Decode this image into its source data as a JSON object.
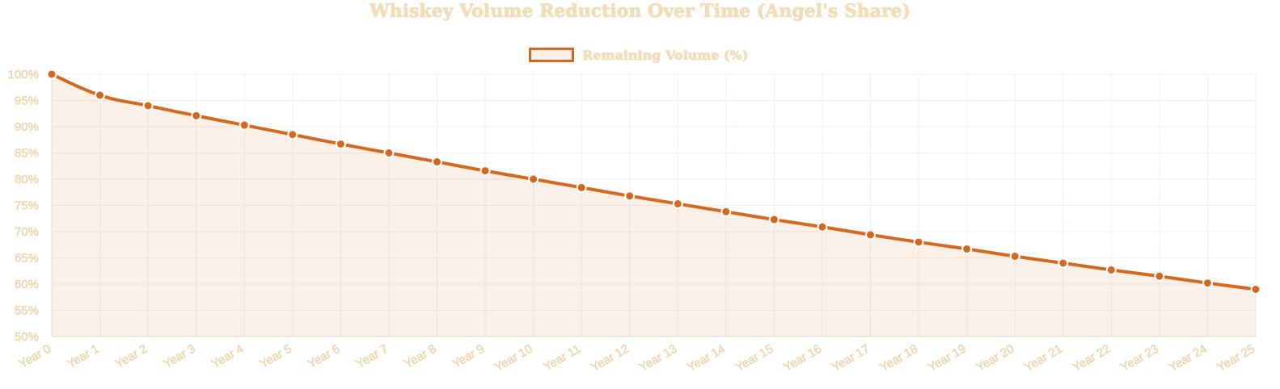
{
  "chart_data": {
    "type": "line",
    "title": "Whiskey Volume Reduction Over Time (Angel's Share)",
    "categories": [
      "Year 0",
      "Year 1",
      "Year 2",
      "Year 3",
      "Year 4",
      "Year 5",
      "Year 6",
      "Year 7",
      "Year 8",
      "Year 9",
      "Year 10",
      "Year 11",
      "Year 12",
      "Year 13",
      "Year 14",
      "Year 15",
      "Year 16",
      "Year 17",
      "Year 18",
      "Year 19",
      "Year 20",
      "Year 21",
      "Year 22",
      "Year 23",
      "Year 24",
      "Year 25"
    ],
    "series": [
      {
        "name": "Remaining Volume (%)",
        "values": [
          100,
          96,
          94,
          92.1,
          90.3,
          88.5,
          86.7,
          85,
          83.3,
          81.6,
          80,
          78.4,
          76.8,
          75.3,
          73.8,
          72.3,
          70.9,
          69.4,
          68,
          66.7,
          65.3,
          64,
          62.7,
          61.5,
          60.2,
          59
        ]
      }
    ],
    "ylim": [
      50,
      100
    ],
    "y_ticks": [
      "50%",
      "55%",
      "60%",
      "65%",
      "70%",
      "75%",
      "80%",
      "85%",
      "90%",
      "95%",
      "100%"
    ],
    "grid": true,
    "legend_position": "top",
    "colors": {
      "line": "#d2691e",
      "fill": "rgba(210,105,30,0.1)",
      "point_border": "#ffffff",
      "text": "#f5deb3",
      "grid": "#f3efe9"
    }
  }
}
